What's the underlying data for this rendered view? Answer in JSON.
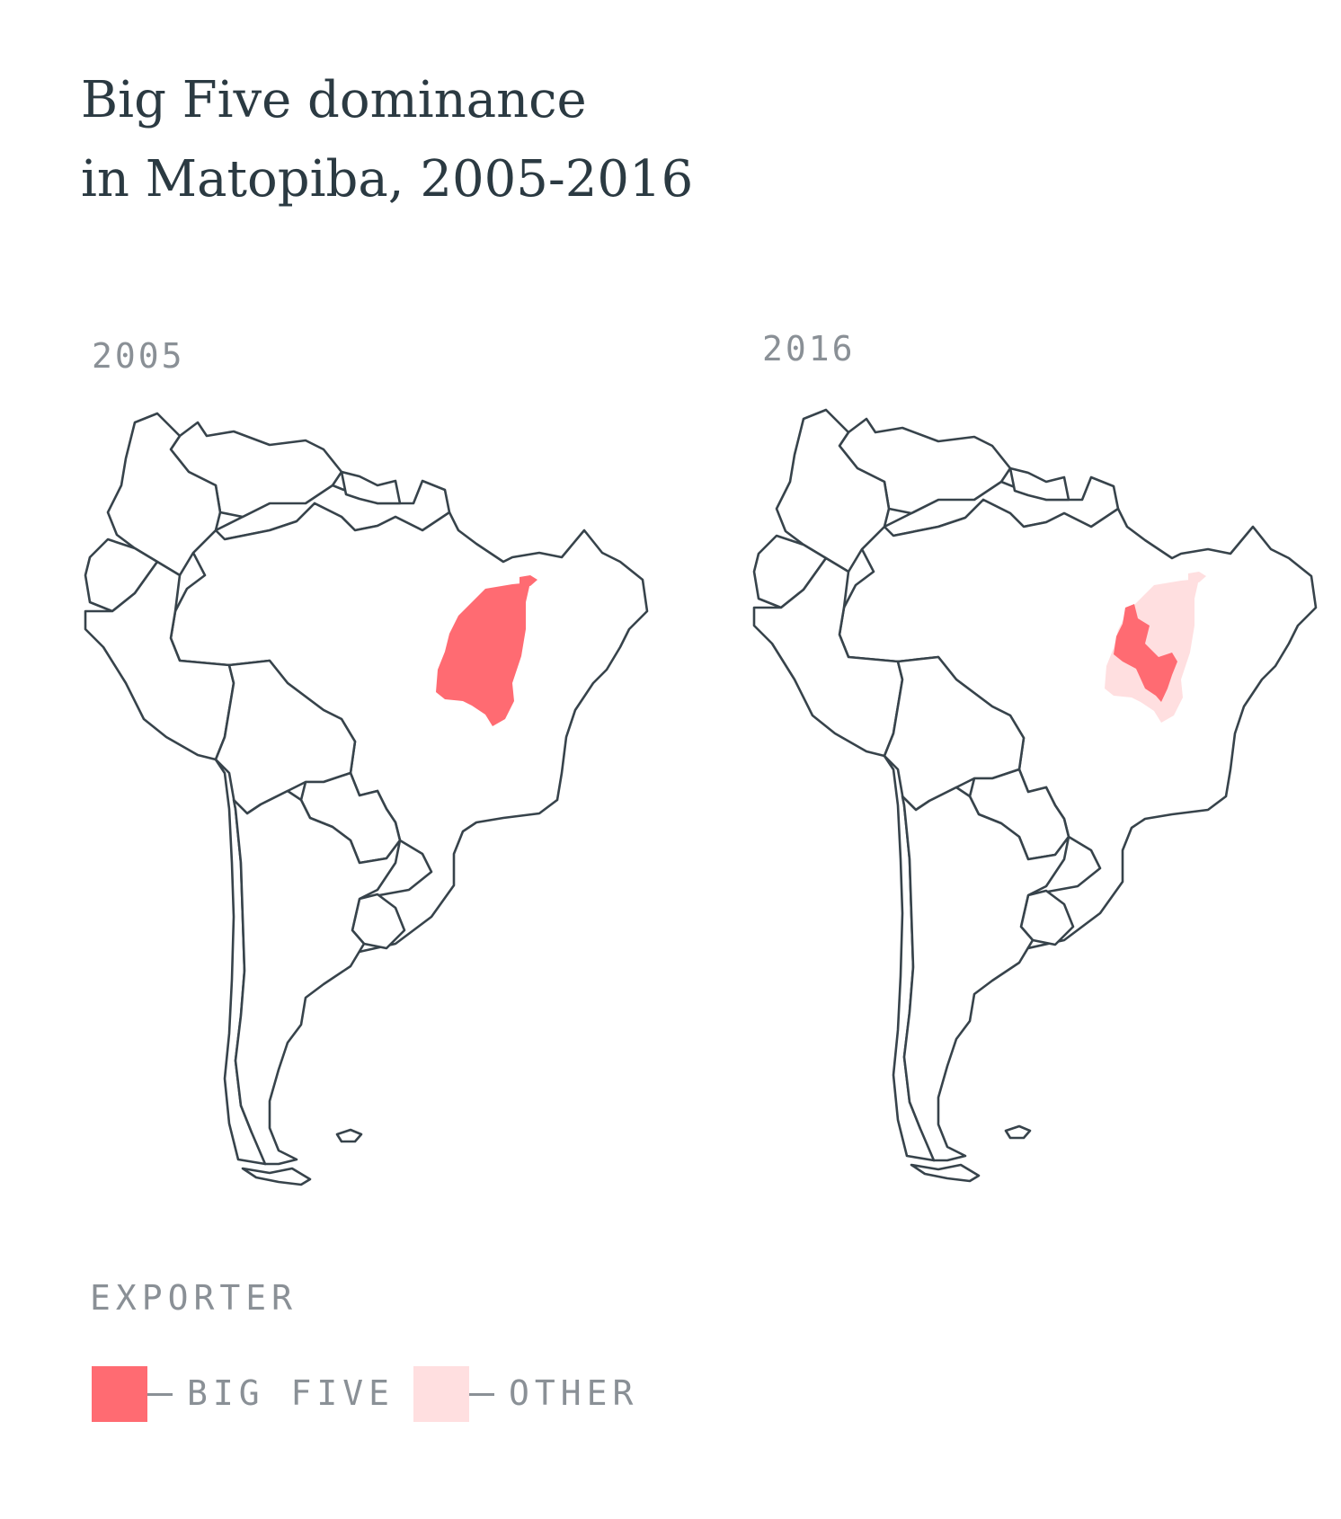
{
  "title": {
    "line1": "Big Five dominance",
    "line2": "in Matopiba, 2005-2016"
  },
  "maps": [
    {
      "year": "2005",
      "big_five_share": "Big Five covers all of Matopiba"
    },
    {
      "year": "2016",
      "big_five_share": "Big Five covers western Matopiba; Other covers the remainder"
    }
  ],
  "legend": {
    "title": "EXPORTER",
    "items": [
      {
        "label": "BIG FIVE",
        "color": "#ff6b72"
      },
      {
        "label": "OTHER",
        "color": "#ffdfe0"
      }
    ]
  },
  "colors": {
    "outline": "#37434b",
    "big_five": "#ff6b72",
    "other": "#ffdfe0"
  }
}
